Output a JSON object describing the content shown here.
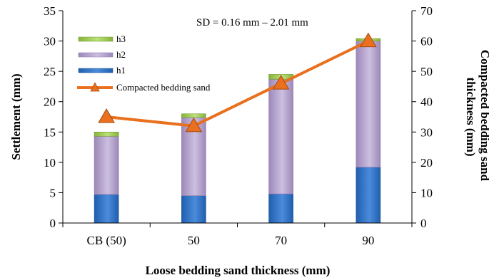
{
  "chart_data": {
    "type": "bar",
    "subtype": "stacked-bar-with-line-secondary-axis",
    "categories": [
      "CB (50)",
      "50",
      "70",
      "90"
    ],
    "series": [
      {
        "name": "h1",
        "kind": "bar",
        "axis": "left",
        "values": [
          4.7,
          4.5,
          4.8,
          9.2
        ]
      },
      {
        "name": "h2",
        "kind": "bar",
        "axis": "left",
        "values": [
          9.6,
          12.9,
          18.9,
          20.8
        ]
      },
      {
        "name": "h3",
        "kind": "bar",
        "axis": "left",
        "values": [
          0.7,
          0.6,
          0.8,
          0.4
        ]
      },
      {
        "name": "Compacted bedding sand",
        "kind": "line",
        "axis": "right",
        "values": [
          35,
          32,
          46,
          60
        ]
      }
    ],
    "xlabel": "Loose bedding sand thickness (mm)",
    "ylabel": "Settlement (mm)",
    "y2label_lines": [
      "Compacted bedding sand",
      "thickness (mm)"
    ],
    "ylim": [
      0,
      35
    ],
    "y2lim": [
      0,
      70
    ],
    "yticks": [
      "0",
      "5",
      "10",
      "15",
      "20",
      "25",
      "30",
      "35"
    ],
    "y2ticks": [
      "0",
      "10",
      "20",
      "30",
      "40",
      "50",
      "60",
      "70"
    ],
    "annotation": "SD = 0.16 mm – 2.01 mm",
    "legend_position": "top-left",
    "grid": false,
    "colors": {
      "h1": "#3A78C9",
      "h2": "#B6A4CC",
      "h3": "#A6CF5C",
      "line": "#E8701E",
      "marker": "#E8701E"
    }
  }
}
